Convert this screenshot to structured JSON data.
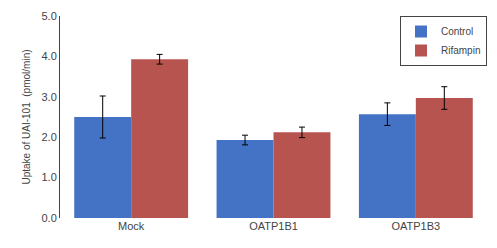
{
  "chart_data": {
    "type": "bar",
    "categories": [
      "Mock",
      "OATP1B1",
      "OATP1B3"
    ],
    "series": [
      {
        "name": "Control",
        "color": "#4472C4",
        "values": [
          2.5,
          1.93,
          2.57
        ],
        "errors": [
          0.52,
          0.12,
          0.28
        ]
      },
      {
        "name": "Rifampin",
        "color": "#B85450",
        "values": [
          3.93,
          2.12,
          2.97
        ],
        "errors": [
          0.12,
          0.13,
          0.28
        ]
      }
    ],
    "ylabel": "Uptake of UAI-101  (pmol/min)",
    "ylim": [
      0.0,
      5.0
    ],
    "yticks": [
      {
        "value": 0,
        "label": "0.0"
      },
      {
        "value": 1,
        "label": "1.0"
      },
      {
        "value": 2,
        "label": "2.0"
      },
      {
        "value": 3,
        "label": "3.0"
      },
      {
        "value": 4,
        "label": "4.0"
      },
      {
        "value": 5,
        "label": "5.0"
      }
    ],
    "grid": false,
    "legend": "upper right"
  }
}
